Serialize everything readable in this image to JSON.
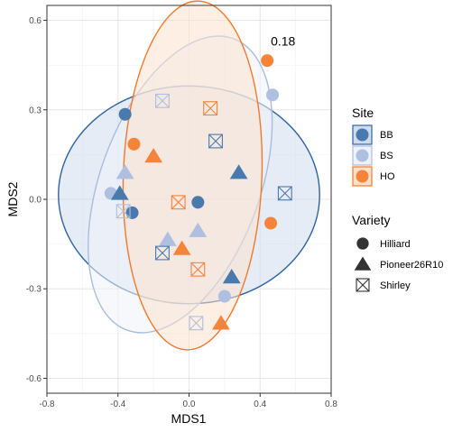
{
  "chart_data": {
    "type": "scatter",
    "xlabel": "MDS1",
    "ylabel": "MDS2",
    "xlim": [
      -0.8,
      0.8
    ],
    "ylim": [
      -0.65,
      0.65
    ],
    "xticks": [
      -0.8,
      -0.4,
      0.0,
      0.4,
      0.8
    ],
    "xtick_labels": [
      "-0.8",
      "-0.4",
      "0.0",
      "0.4",
      "0.8"
    ],
    "yticks": [
      -0.6,
      -0.3,
      0.0,
      0.3,
      0.6
    ],
    "ytick_labels": [
      "-0.6",
      "-0.3",
      "0.0",
      "0.3",
      "0.6"
    ],
    "grid": true,
    "legend_position": "right",
    "colors": {
      "BB": "#4a79ae",
      "BS": "#aebfdf",
      "HO": "#f5843a"
    },
    "ellipse_colors": {
      "BB": {
        "stroke": "#2d64a3",
        "fill": "#cfdcec"
      },
      "BS": {
        "stroke": "#a9bddf",
        "fill": "#eef3fa"
      },
      "HO": {
        "stroke": "#f07a2c",
        "fill": "#fce1cd"
      }
    },
    "ellipses": [
      {
        "site": "BB",
        "cx": 0.0,
        "cy": 0.015,
        "rx": 0.735,
        "ry": 0.365,
        "angle": 0
      },
      {
        "site": "BS",
        "cx": -0.05,
        "cy": 0.05,
        "rx": 0.45,
        "ry": 0.52,
        "angle": 20
      },
      {
        "site": "HO",
        "cx": 0.02,
        "cy": 0.08,
        "rx": 0.39,
        "ry": 0.585,
        "angle": 2
      }
    ],
    "annotation": {
      "text": "0.18",
      "x": 0.46,
      "y": 0.515
    },
    "legend": {
      "site_title": "Site",
      "site_items": [
        "BB",
        "BS",
        "HO"
      ],
      "variety_title": "Variety",
      "variety_items": [
        "Hilliard",
        "Pioneer26R10",
        "Shirley"
      ]
    },
    "points": [
      {
        "site": "HO",
        "variety": "Hilliard",
        "x": 0.44,
        "y": 0.465
      },
      {
        "site": "BS",
        "variety": "Hilliard",
        "x": 0.47,
        "y": 0.35
      },
      {
        "site": "BB",
        "variety": "Hilliard",
        "x": -0.36,
        "y": 0.285
      },
      {
        "site": "HO",
        "variety": "Hilliard",
        "x": -0.31,
        "y": 0.185
      },
      {
        "site": "BS",
        "variety": "Hilliard",
        "x": -0.44,
        "y": 0.02
      },
      {
        "site": "BB",
        "variety": "Hilliard",
        "x": -0.32,
        "y": -0.045
      },
      {
        "site": "BB",
        "variety": "Hilliard",
        "x": 0.05,
        "y": -0.01
      },
      {
        "site": "HO",
        "variety": "Hilliard",
        "x": 0.46,
        "y": -0.08
      },
      {
        "site": "BS",
        "variety": "Hilliard",
        "x": 0.2,
        "y": -0.325
      },
      {
        "site": "BB",
        "variety": "Pioneer26R10",
        "x": 0.28,
        "y": 0.09
      },
      {
        "site": "HO",
        "variety": "Pioneer26R10",
        "x": -0.2,
        "y": 0.145
      },
      {
        "site": "BS",
        "variety": "Pioneer26R10",
        "x": -0.36,
        "y": 0.09
      },
      {
        "site": "BB",
        "variety": "Pioneer26R10",
        "x": -0.39,
        "y": 0.02
      },
      {
        "site": "BS",
        "variety": "Pioneer26R10",
        "x": 0.05,
        "y": -0.105
      },
      {
        "site": "BS",
        "variety": "Pioneer26R10",
        "x": -0.12,
        "y": -0.135
      },
      {
        "site": "HO",
        "variety": "Pioneer26R10",
        "x": -0.04,
        "y": -0.165
      },
      {
        "site": "BB",
        "variety": "Pioneer26R10",
        "x": 0.24,
        "y": -0.26
      },
      {
        "site": "HO",
        "variety": "Pioneer26R10",
        "x": 0.18,
        "y": -0.415
      },
      {
        "site": "BS",
        "variety": "Shirley",
        "x": -0.15,
        "y": 0.33
      },
      {
        "site": "HO",
        "variety": "Shirley",
        "x": 0.12,
        "y": 0.305
      },
      {
        "site": "BB",
        "variety": "Shirley",
        "x": 0.15,
        "y": 0.195
      },
      {
        "site": "BB",
        "variety": "Shirley",
        "x": 0.54,
        "y": 0.02
      },
      {
        "site": "HO",
        "variety": "Shirley",
        "x": -0.06,
        "y": -0.01
      },
      {
        "site": "BS",
        "variety": "Shirley",
        "x": -0.37,
        "y": -0.04
      },
      {
        "site": "BB",
        "variety": "Shirley",
        "x": -0.15,
        "y": -0.18
      },
      {
        "site": "HO",
        "variety": "Shirley",
        "x": 0.05,
        "y": -0.235
      },
      {
        "site": "BS",
        "variety": "Shirley",
        "x": 0.04,
        "y": -0.415
      }
    ]
  }
}
